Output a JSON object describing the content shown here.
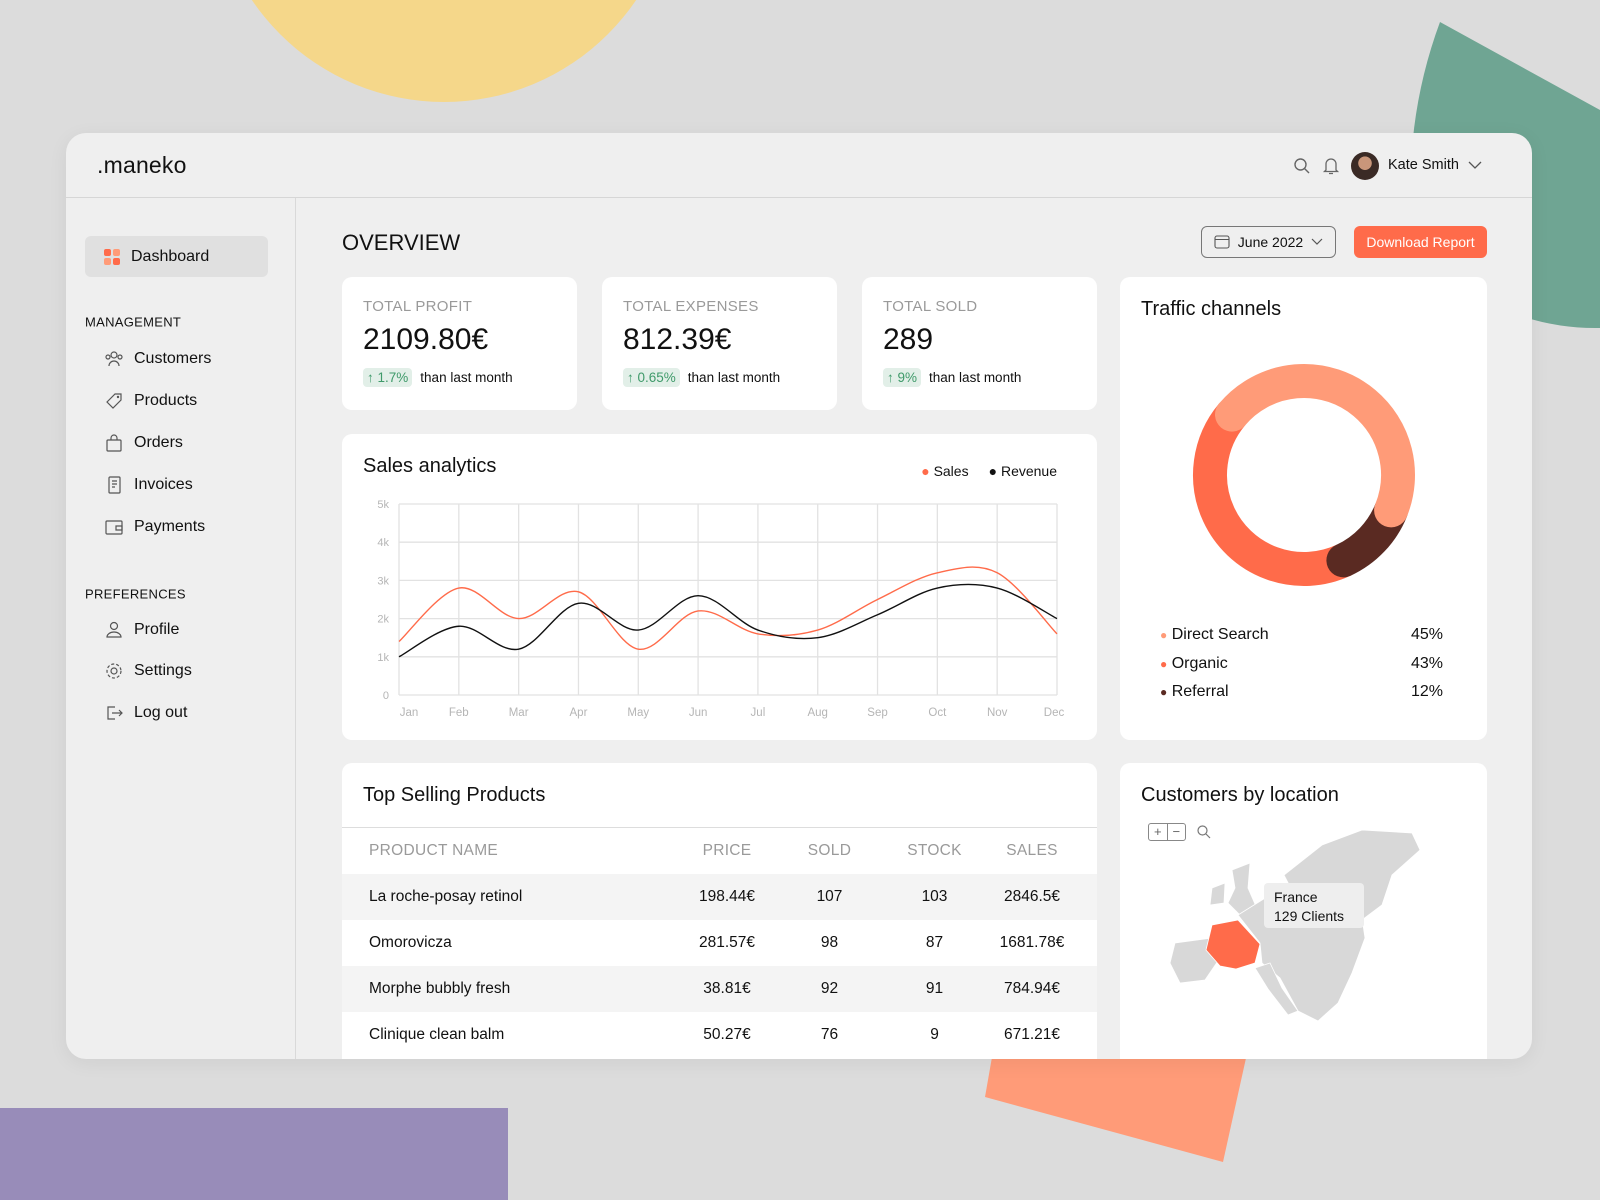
{
  "app": {
    "logo": ".maneko"
  },
  "header": {
    "user_name": "Kate Smith"
  },
  "sidebar": {
    "active": "Dashboard",
    "management_label": "MANAGEMENT",
    "management": [
      "Customers",
      "Products",
      "Orders",
      "Invoices",
      "Payments"
    ],
    "preferences_label": "PREFERENCES",
    "preferences": [
      "Profile",
      "Settings",
      "Log out"
    ]
  },
  "overview": {
    "title": "OVERVIEW",
    "date": "June 2022",
    "download": "Download Report"
  },
  "stats": [
    {
      "label": "TOTAL PROFIT",
      "value": "2109.80€",
      "change": "1.7%",
      "note": "than last month"
    },
    {
      "label": "TOTAL EXPENSES",
      "value": "812.39€",
      "change": "0.65%",
      "note": "than last month"
    },
    {
      "label": "TOTAL SOLD",
      "value": "289",
      "change": "9%",
      "note": "than last month"
    }
  ],
  "colors": {
    "accent": "#ff6b4a",
    "light": "#ff9b78",
    "dark": "#5a2a22",
    "green": "#3f9a6a"
  },
  "chart_data": {
    "type": "line",
    "title": "Sales analytics",
    "categories": [
      "Jan",
      "Feb",
      "Mar",
      "Apr",
      "May",
      "Jun",
      "Jul",
      "Aug",
      "Sep",
      "Oct",
      "Nov",
      "Dec"
    ],
    "yticks": [
      "0",
      "1k",
      "2k",
      "3k",
      "4k",
      "5k"
    ],
    "ylim": [
      0,
      5000
    ],
    "legend": "top-right",
    "series": [
      {
        "name": "Sales",
        "color": "#ff6b4a",
        "values": [
          1400,
          2800,
          2000,
          2700,
          1200,
          2200,
          1600,
          1700,
          2500,
          3200,
          3200,
          1600
        ]
      },
      {
        "name": "Revenue",
        "color": "#111111",
        "values": [
          1000,
          1800,
          1200,
          2400,
          1700,
          2600,
          1700,
          1500,
          2100,
          2800,
          2800,
          2000
        ]
      }
    ]
  },
  "traffic": {
    "title": "Traffic channels",
    "channels": [
      {
        "name": "Direct Search",
        "pct": "45%",
        "value": 45,
        "color": "#ff9b78"
      },
      {
        "name": "Organic",
        "pct": "43%",
        "value": 43,
        "color": "#ff6b4a"
      },
      {
        "name": "Referral",
        "pct": "12%",
        "value": 12,
        "color": "#5a2a22"
      }
    ]
  },
  "products": {
    "title": "Top Selling Products",
    "columns": [
      "PRODUCT NAME",
      "PRICE",
      "SOLD",
      "STOCK",
      "SALES"
    ],
    "rows": [
      [
        "La roche-posay retinol",
        "198.44€",
        "107",
        "103",
        "2846.5€"
      ],
      [
        "Omorovicza",
        "281.57€",
        "98",
        "87",
        "1681.78€"
      ],
      [
        "Morphe bubbly fresh",
        "38.81€",
        "92",
        "91",
        "784.94€"
      ],
      [
        "Clinique clean balm",
        "50.27€",
        "76",
        "9",
        "671.21€"
      ]
    ]
  },
  "location": {
    "title": "Customers by location",
    "tooltip_country": "France",
    "tooltip_clients": "129 Clients"
  }
}
